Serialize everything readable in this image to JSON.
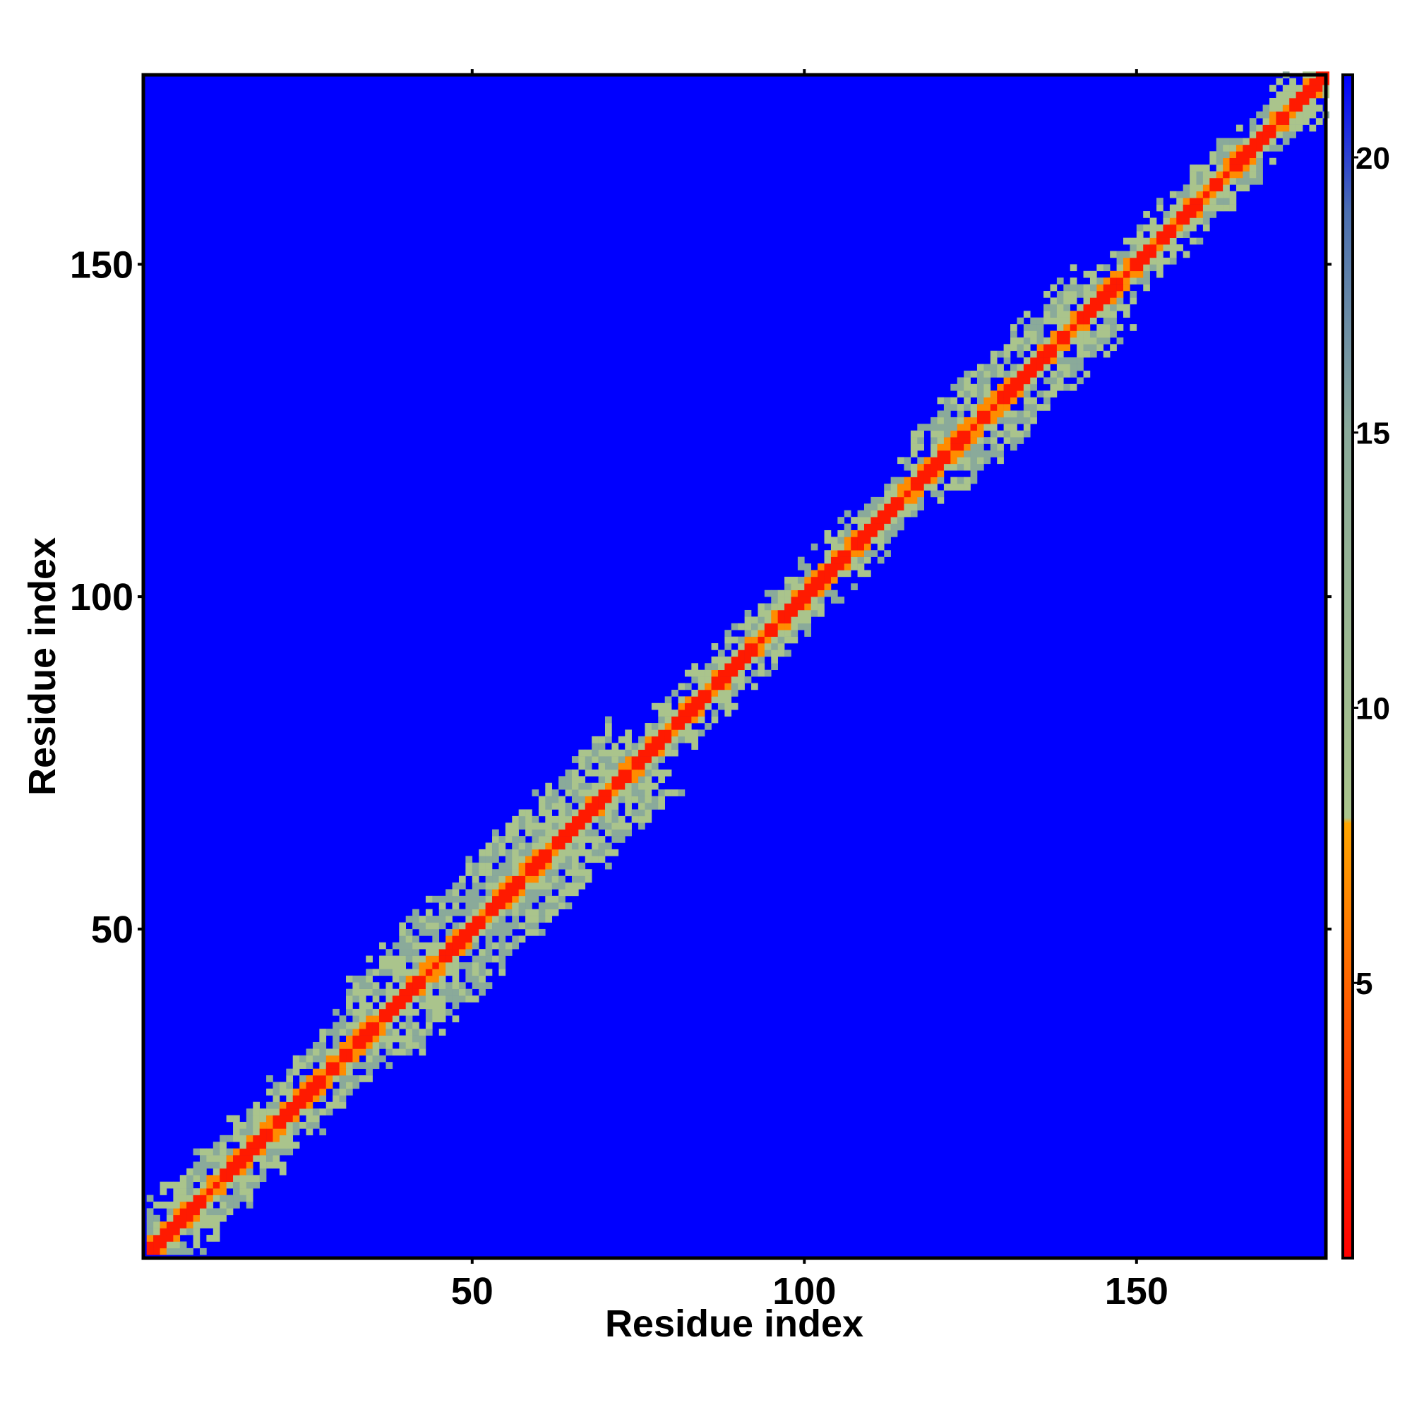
{
  "chart_data": {
    "type": "heatmap",
    "title": "",
    "xlabel": "Residue index",
    "ylabel": "Residue index",
    "xlim": [
      1,
      178
    ],
    "ylim": [
      1,
      178
    ],
    "x_ticks": [
      50,
      100,
      150
    ],
    "y_ticks": [
      50,
      100,
      150
    ],
    "x_tick_labels": [
      "50",
      "100",
      "150"
    ],
    "y_tick_labels": [
      "50",
      "100",
      "150"
    ],
    "colorbar": {
      "range": [
        0,
        21.5
      ],
      "ticks": [
        5,
        10,
        15,
        20
      ],
      "tick_labels": [
        "5",
        "10",
        "15",
        "20"
      ],
      "colors": [
        {
          "value": 0,
          "color": "#ff0000"
        },
        {
          "value": 4.5,
          "color": "#ff5a00"
        },
        {
          "value": 7.9,
          "color": "#ffa500"
        },
        {
          "value": 8.0,
          "color": "#aac48c"
        },
        {
          "value": 15,
          "color": "#8aaa9a"
        },
        {
          "value": 19,
          "color": "#4c6fb0"
        },
        {
          "value": 21.5,
          "color": "#0000ff"
        }
      ]
    },
    "matrix_description": "symmetric contact map: red main diagonal (value ~0-4), orange near-diagonal contacts (~5-8), grey-green cloud (~9-15) within ~1-8 residues of diagonal broader in 10-70 and 115-140 ranges, blue (>=21) elsewhere",
    "band_profile": [
      {
        "range": [
          1,
          30
        ],
        "width": 6
      },
      {
        "range": [
          30,
          70
        ],
        "width": 9
      },
      {
        "range": [
          70,
          115
        ],
        "width": 4
      },
      {
        "range": [
          115,
          140
        ],
        "width": 7
      },
      {
        "range": [
          140,
          178
        ],
        "width": 4
      }
    ]
  }
}
